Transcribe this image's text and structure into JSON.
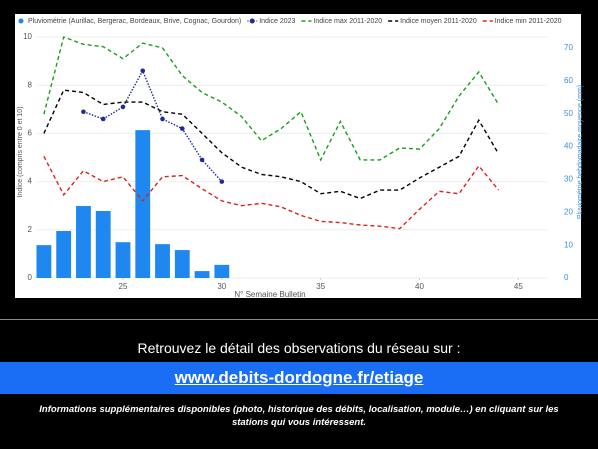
{
  "chart_data": {
    "type": "combo",
    "x": [
      21,
      22,
      23,
      24,
      25,
      26,
      27,
      28,
      29,
      30,
      31,
      32,
      33,
      34,
      35,
      36,
      37,
      38,
      39,
      40,
      41,
      42,
      43,
      44
    ],
    "series": [
      {
        "name": "Pluviométrie (Aurillac, Bergerac, Bordeaux, Brive, Cognac, Gourdon)",
        "type": "bar",
        "axis": "y2",
        "color": "#1e88f0",
        "values": [
          10,
          14.3,
          21.9,
          20.4,
          10.9,
          45,
          10.3,
          8.5,
          2.1,
          4,
          null,
          null,
          null,
          null,
          null,
          null,
          null,
          null,
          null,
          null,
          null,
          null,
          null,
          null
        ]
      },
      {
        "name": "Indice 2023",
        "type": "line",
        "line_style": "dotted",
        "markers": true,
        "color": "#1f2a9c",
        "values": [
          null,
          null,
          6.9,
          6.6,
          7.1,
          8.6,
          6.6,
          6.2,
          4.9,
          4.0,
          null,
          null,
          null,
          null,
          null,
          null,
          null,
          null,
          null,
          null,
          null,
          null,
          null,
          null
        ]
      },
      {
        "name": "Indice max 2011-2020",
        "type": "line",
        "line_style": "dashed",
        "color": "#1a9e1a",
        "values": [
          6.8,
          10.0,
          9.7,
          9.6,
          9.1,
          9.75,
          9.55,
          8.4,
          7.7,
          7.3,
          6.7,
          5.7,
          6.2,
          6.9,
          4.9,
          6.5,
          4.9,
          4.9,
          5.4,
          5.35,
          6.2,
          7.55,
          8.55,
          7.2
        ]
      },
      {
        "name": "Indice moyen 2011-2020",
        "type": "line",
        "line_style": "dashed",
        "color": "#000000",
        "values": [
          6.0,
          7.8,
          7.7,
          7.2,
          7.3,
          7.3,
          6.9,
          6.8,
          6.0,
          5.2,
          4.6,
          4.3,
          4.2,
          4.0,
          3.5,
          3.6,
          3.3,
          3.65,
          3.65,
          4.15,
          4.6,
          5.05,
          6.55,
          5.15
        ]
      },
      {
        "name": "Indice min 2011-2020",
        "type": "line",
        "line_style": "dashed",
        "color": "#e0201b",
        "values": [
          5.05,
          3.45,
          4.45,
          4.0,
          4.2,
          3.2,
          4.2,
          4.25,
          3.7,
          3.2,
          3.0,
          3.1,
          2.95,
          2.6,
          2.35,
          2.3,
          2.2,
          2.15,
          2.05,
          2.85,
          3.6,
          3.5,
          4.65,
          3.65
        ]
      }
    ],
    "xlabel": "N° Semaine Bulletin",
    "ylabel": "Indice (compris entre 0 et 10)",
    "y2label": "Pluviométrie hebdomadaire moyenne (mm)",
    "xlim": [
      20.6,
      46.5
    ],
    "xticks": [
      25,
      30,
      35,
      40,
      45
    ],
    "ylim": [
      0,
      10.5
    ],
    "yticks": [
      0,
      2,
      4,
      6,
      8,
      10
    ],
    "y2lim": [
      0,
      77
    ],
    "y2ticks": [
      0,
      10,
      20,
      30,
      40,
      50,
      60,
      70
    ],
    "grid": true,
    "legend": "top"
  },
  "footer": {
    "intro": "Retrouvez le détail des observations du réseau sur :",
    "link": "www.debits-dordogne.fr/etiage",
    "note": "Informations supplémentaires disponibles (photo, historique des débits, localisation, module…) en cliquant sur les stations qui vous intéressent."
  }
}
